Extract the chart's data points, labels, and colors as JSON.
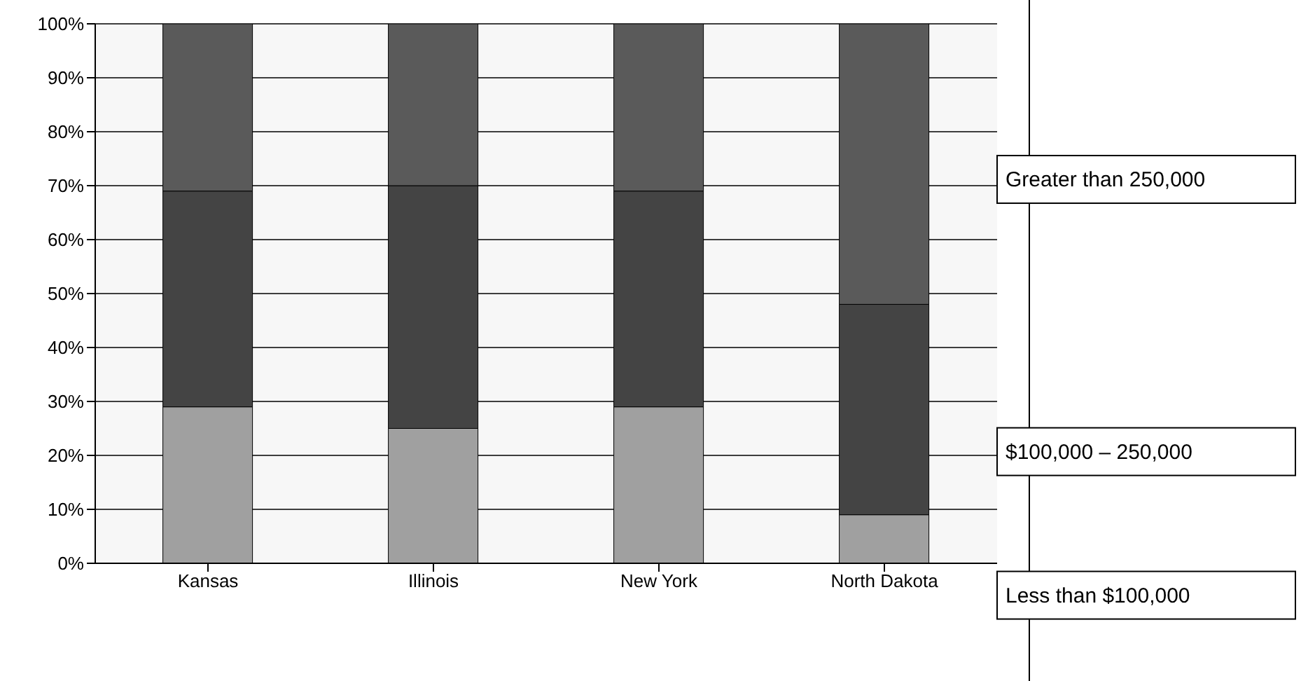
{
  "chart_data": {
    "type": "bar",
    "stacked": true,
    "categories": [
      "Kansas",
      "Illinois",
      "New York",
      "North Dakota"
    ],
    "series": [
      {
        "name": "Less than $100,000",
        "color": "#a0a0a0",
        "values": [
          29,
          25,
          29,
          9
        ]
      },
      {
        "name": "$100,000 – 250,000",
        "color": "#444444",
        "values": [
          40,
          45,
          40,
          39
        ]
      },
      {
        "name": "Greater than 250,000",
        "color": "#5a5a5a",
        "values": [
          31,
          30,
          31,
          52
        ]
      }
    ],
    "ylim": [
      0,
      100
    ],
    "yticks": [
      {
        "value": 0,
        "label": "0%"
      },
      {
        "value": 10,
        "label": "10%"
      },
      {
        "value": 20,
        "label": "20%"
      },
      {
        "value": 30,
        "label": "30%"
      },
      {
        "value": 40,
        "label": "40%"
      },
      {
        "value": 50,
        "label": "50%"
      },
      {
        "value": 60,
        "label": "60%"
      },
      {
        "value": 70,
        "label": "70%"
      },
      {
        "value": 80,
        "label": "80%"
      },
      {
        "value": 90,
        "label": "90%"
      },
      {
        "value": 100,
        "label": "100%"
      }
    ],
    "grid": "y"
  }
}
